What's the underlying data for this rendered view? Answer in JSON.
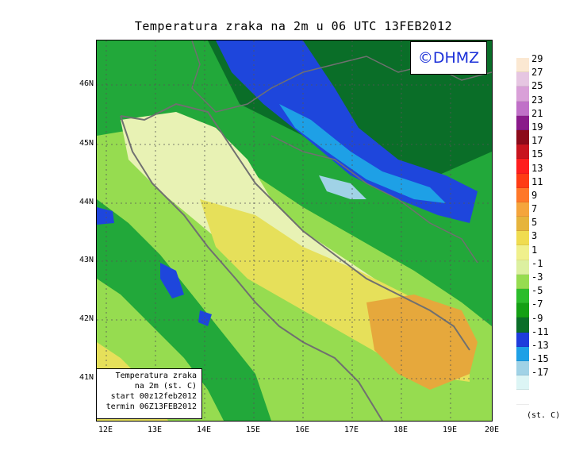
{
  "title": "Temperatura zraka na 2m u 06 UTC 13FEB2012",
  "logo": "©DHMZ",
  "info_box": {
    "line1": "Temperatura zraka",
    "line2": "na 2m (st. C)",
    "line3": "start 00z12feb2012",
    "line4": "termin 06Z13FEB2012"
  },
  "lat_labels": [
    "46N",
    "45N",
    "44N",
    "43N",
    "42N",
    "41N"
  ],
  "lon_labels": [
    "12E",
    "13E",
    "14E",
    "15E",
    "16E",
    "17E",
    "18E",
    "19E",
    "20E"
  ],
  "legend": {
    "labels": [
      "29",
      "27",
      "25",
      "23",
      "21",
      "19",
      "17",
      "15",
      "13",
      "11",
      "9",
      "7",
      "5",
      "3",
      "1",
      "-1",
      "-3",
      "-5",
      "-7",
      "-9",
      "-11",
      "-13",
      "-15",
      "-17"
    ],
    "colors": [
      "#fbe8d2",
      "#e6c6e2",
      "#d9a0d8",
      "#c070c8",
      "#8a1a8a",
      "#8c0a1a",
      "#c8141e",
      "#ff1e1e",
      "#ff3c14",
      "#ff7828",
      "#f5a53c",
      "#e6b43c",
      "#f0dc50",
      "#f0f08c",
      "#dcf0a0",
      "#96dc50",
      "#2bbd2b",
      "#14a014",
      "#0a6e28",
      "#1e3cdc",
      "#1ea0e6",
      "#a0d2e6",
      "#dcf5f5",
      "#ffffff"
    ],
    "unit": "(st. C)"
  },
  "region_colors": {
    "very_cold": "#a0d2e6",
    "cold_blue": "#1e46dc",
    "mid_blue": "#1ea0e6",
    "dark_green": "#0a6e28",
    "green": "#22a83a",
    "light_green": "#96dc50",
    "pale": "#e8f2b4",
    "yellow": "#e6e05a",
    "orange": "#e6a83c"
  }
}
